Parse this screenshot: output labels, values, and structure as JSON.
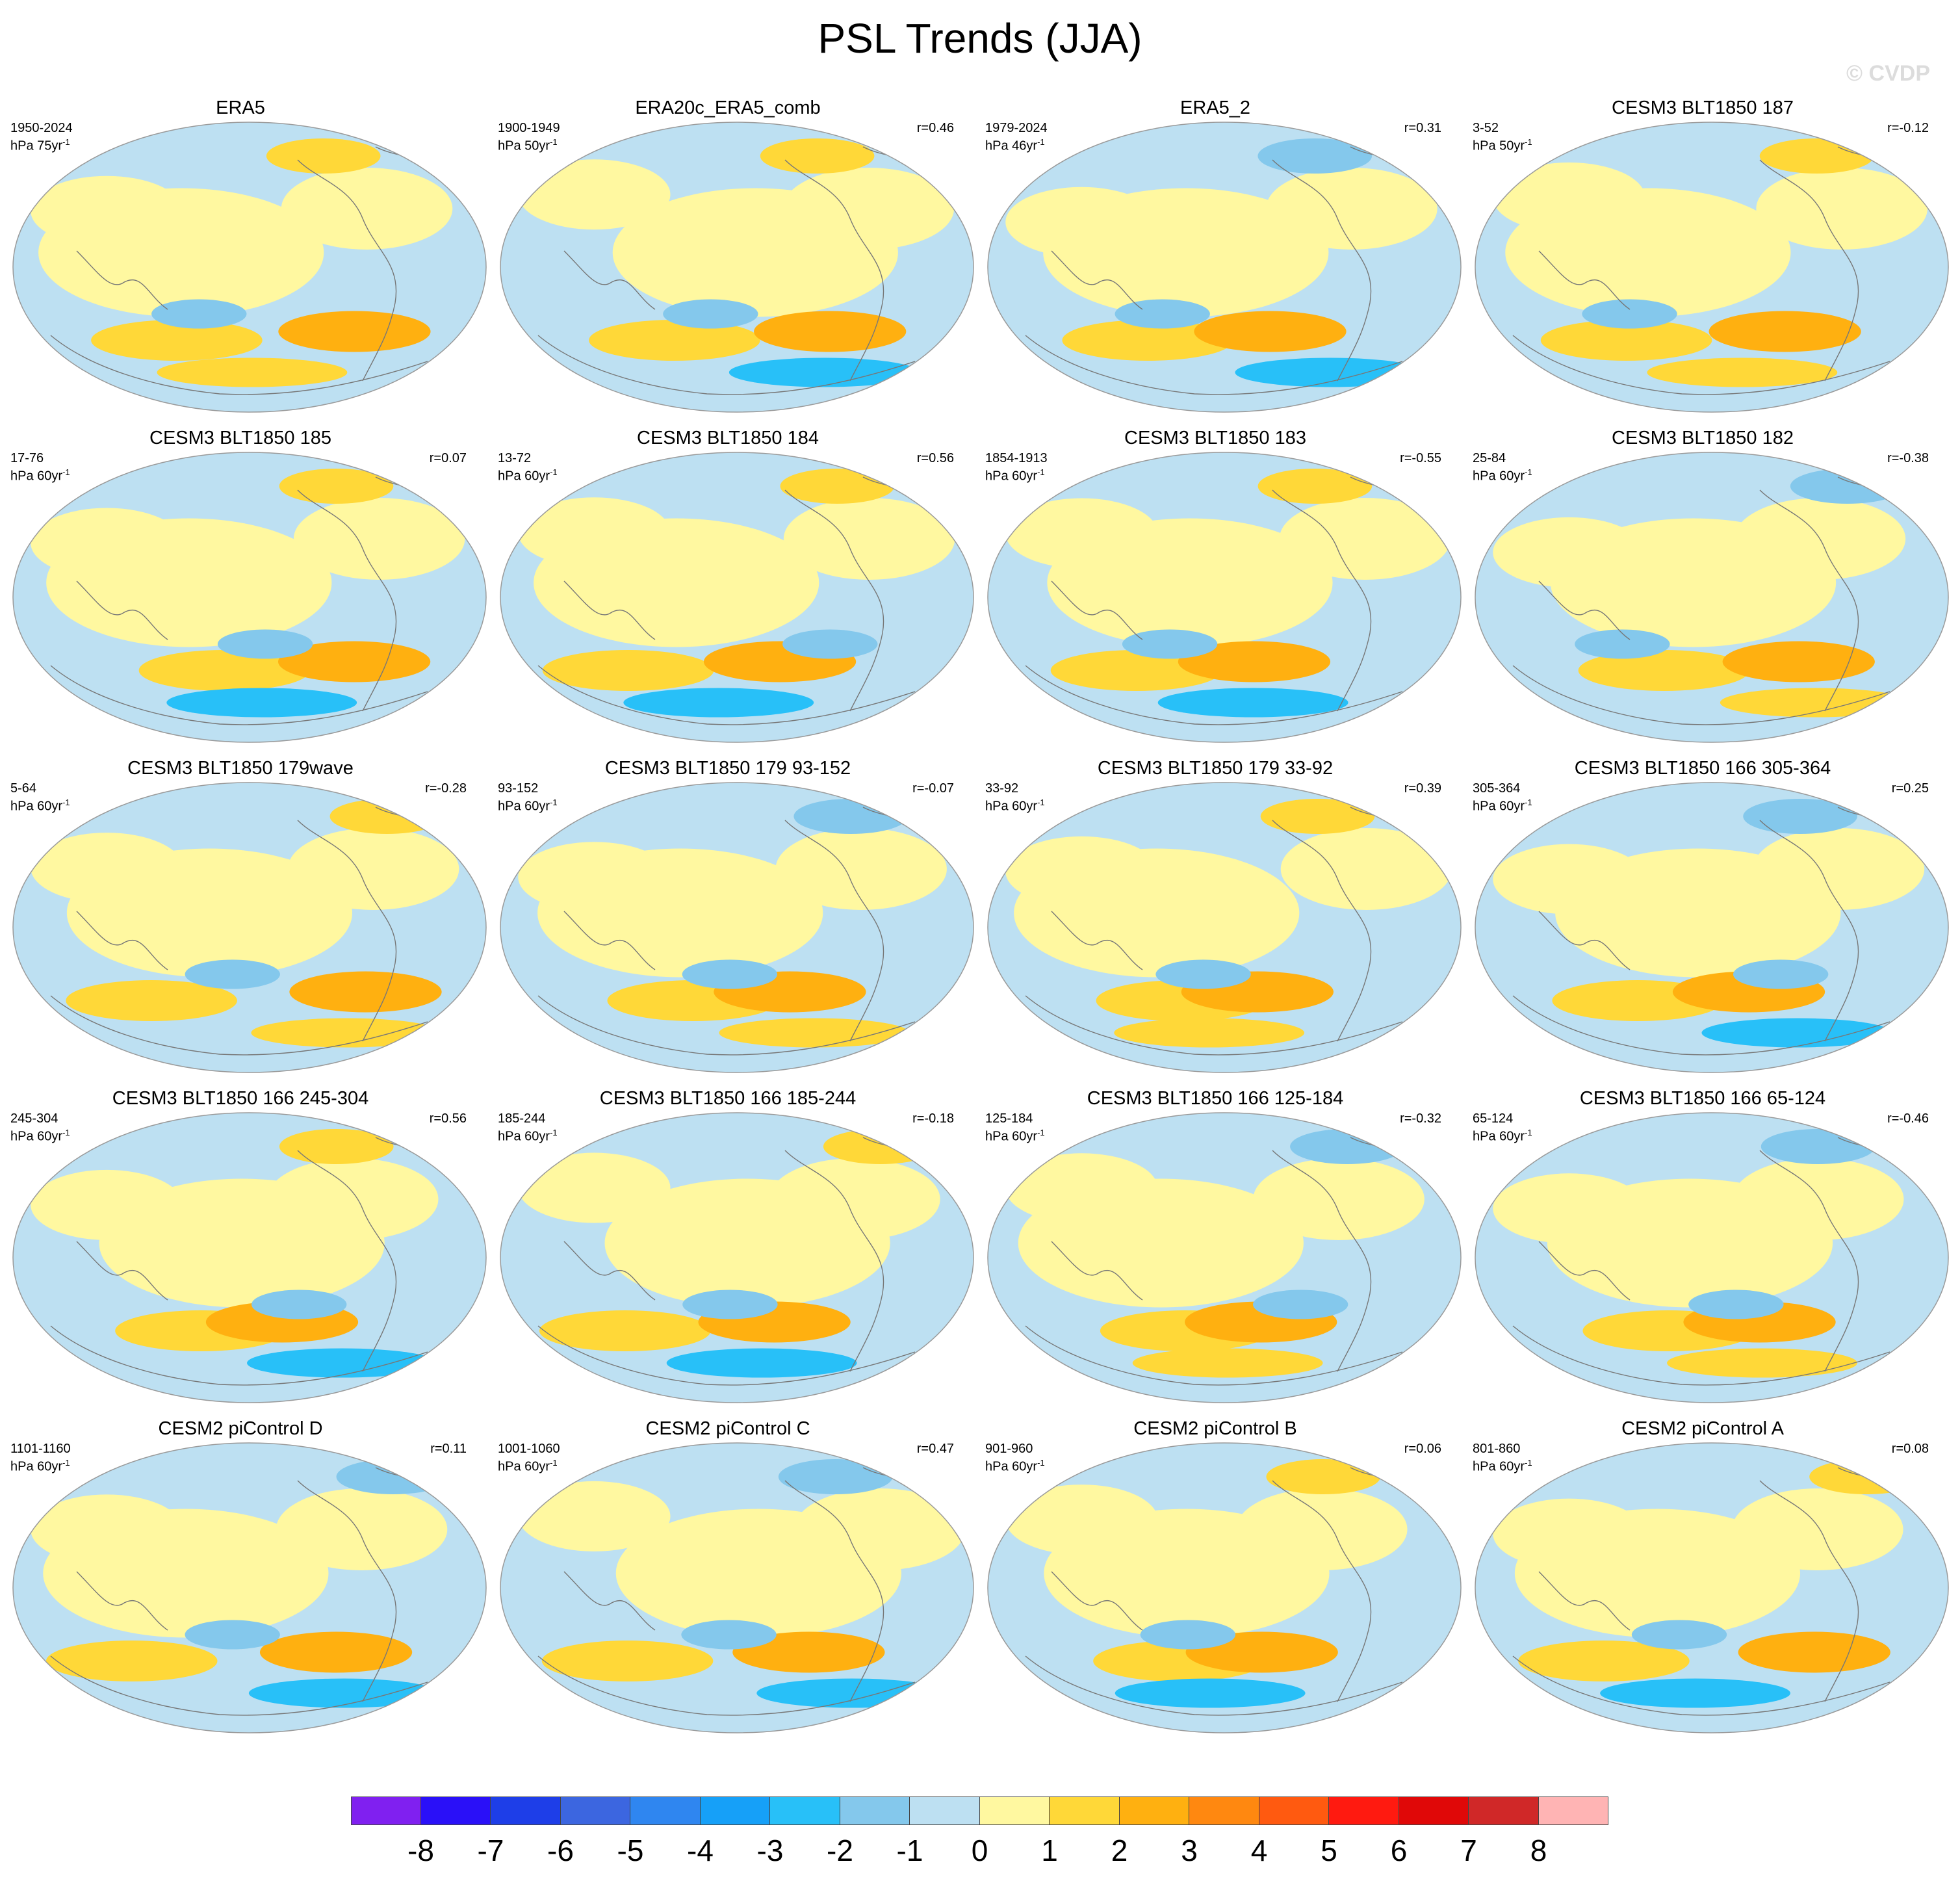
{
  "title": "PSL Trends (JJA)",
  "watermark": "© CVDP",
  "panels": [
    {
      "title": "ERA5",
      "years": "1950-2024",
      "units": "hPa 75yr",
      "r": ""
    },
    {
      "title": "ERA20c_ERA5_comb",
      "years": "1900-1949",
      "units": "hPa 50yr",
      "r": "r=0.46"
    },
    {
      "title": "ERA5_2",
      "years": "1979-2024",
      "units": "hPa 46yr",
      "r": "r=0.31"
    },
    {
      "title": "CESM3 BLT1850 187",
      "years": "3-52",
      "units": "hPa 50yr",
      "r": "r=-0.12"
    },
    {
      "title": "CESM3 BLT1850 185",
      "years": "17-76",
      "units": "hPa 60yr",
      "r": "r=0.07"
    },
    {
      "title": "CESM3 BLT1850 184",
      "years": "13-72",
      "units": "hPa 60yr",
      "r": "r=0.56"
    },
    {
      "title": "CESM3 BLT1850 183",
      "years": "1854-1913",
      "units": "hPa 60yr",
      "r": "r=-0.55"
    },
    {
      "title": "CESM3 BLT1850 182",
      "years": "25-84",
      "units": "hPa 60yr",
      "r": "r=-0.38"
    },
    {
      "title": "CESM3 BLT1850 179wave",
      "years": "5-64",
      "units": "hPa 60yr",
      "r": "r=-0.28"
    },
    {
      "title": "CESM3 BLT1850 179 93-152",
      "years": "93-152",
      "units": "hPa 60yr",
      "r": "r=-0.07"
    },
    {
      "title": "CESM3 BLT1850 179 33-92",
      "years": "33-92",
      "units": "hPa 60yr",
      "r": "r=0.39"
    },
    {
      "title": "CESM3 BLT1850 166 305-364",
      "years": "305-364",
      "units": "hPa 60yr",
      "r": "r=0.25"
    },
    {
      "title": "CESM3 BLT1850 166 245-304",
      "years": "245-304",
      "units": "hPa 60yr",
      "r": "r=0.56"
    },
    {
      "title": "CESM3 BLT1850 166 185-244",
      "years": "185-244",
      "units": "hPa 60yr",
      "r": "r=-0.18"
    },
    {
      "title": "CESM3 BLT1850 166 125-184",
      "years": "125-184",
      "units": "hPa 60yr",
      "r": "r=-0.32"
    },
    {
      "title": "CESM3 BLT1850 166 65-124",
      "years": "65-124",
      "units": "hPa 60yr",
      "r": "r=-0.46"
    },
    {
      "title": "CESM2 piControl D",
      "years": "1101-1160",
      "units": "hPa 60yr",
      "r": "r=0.11"
    },
    {
      "title": "CESM2 piControl C",
      "years": "1001-1060",
      "units": "hPa 60yr",
      "r": "r=0.47"
    },
    {
      "title": "CESM2 piControl B",
      "years": "901-960",
      "units": "hPa 60yr",
      "r": "r=0.06"
    },
    {
      "title": "CESM2 piControl A",
      "years": "801-860",
      "units": "hPa 60yr",
      "r": "r=0.08"
    }
  ],
  "units_superscript": "-1",
  "colorbar": {
    "labels": [
      "-8",
      "-7",
      "-6",
      "-5",
      "-4",
      "-3",
      "-2",
      "-1",
      "0",
      "1",
      "2",
      "3",
      "4",
      "5",
      "6",
      "7",
      "8"
    ],
    "colors": [
      "#8020f0",
      "#2a10f8",
      "#1e3ee8",
      "#3c66e0",
      "#2f86f0",
      "#16a0f8",
      "#28c0f8",
      "#84c8ec",
      "#bde0f2",
      "#fff8a0",
      "#ffd838",
      "#ffb010",
      "#ff8810",
      "#ff5a10",
      "#ff1a10",
      "#e00808",
      "#d02828",
      "#ffb4b4"
    ]
  },
  "map_colors": {
    "ocean": "#bde0f2",
    "positive_weak": "#fff8a0",
    "positive_1": "#ffd838",
    "positive_2": "#ffb010",
    "positive_3": "#ff8810",
    "negative_1": "#84c8ec",
    "negative_2": "#28c0f8",
    "negative_3": "#2f86f0",
    "negative_4": "#3c66e0",
    "coast": "#777777",
    "outline": "#9a9a9a"
  }
}
